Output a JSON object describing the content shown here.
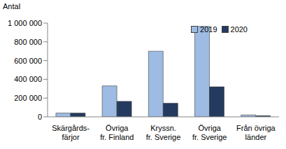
{
  "chart_data": {
    "type": "bar",
    "y_label": "Antal",
    "categories": [
      "Skärgårds-\nfärjor",
      "Övriga\nfr. Finland",
      "Kryssn.\nfr. Sverige",
      "Övriga\nfr. Sverige",
      "Från övriga\nländer"
    ],
    "series": [
      {
        "name": "2019",
        "color": "#9dbbe3",
        "values": [
          40000,
          330000,
          700000,
          965000,
          20000
        ]
      },
      {
        "name": "2020",
        "color": "#243a5e",
        "values": [
          40000,
          165000,
          145000,
          320000,
          12000
        ]
      }
    ],
    "ylim": [
      0,
      1000000
    ],
    "yticks": [
      0,
      {
        "value": 200000,
        "label": "200 000"
      },
      {
        "value": 400000,
        "label": "400 000"
      },
      {
        "value": 600000,
        "label": "600 000"
      },
      {
        "value": 800000,
        "label": "800 000"
      },
      {
        "value": 1000000,
        "label": "1 000 000"
      }
    ],
    "grid": false,
    "legend": "top-right"
  }
}
